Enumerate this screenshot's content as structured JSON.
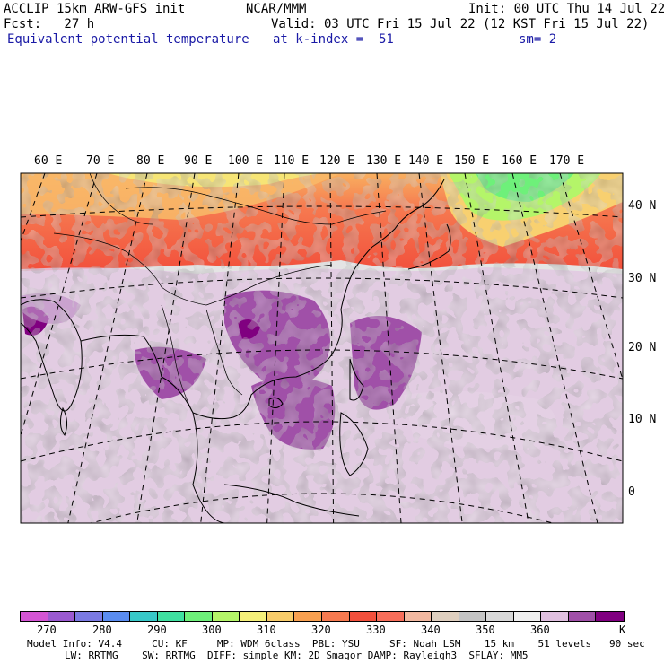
{
  "header": {
    "line1_left": "ACCLIP 15km ARW-GFS init",
    "line1_center": "NCAR/MMM",
    "line1_right": "Init: 00 UTC Thu 14 Jul 22",
    "line2_left": "Fcst:   27 h",
    "line2_right": "Valid: 03 UTC Fri 15 Jul 22 (12 KST Fri 15 Jul 22)",
    "field_name": "Equivalent potential temperature",
    "level": "at k-index =  51",
    "smoothing": "sm= 2"
  },
  "map": {
    "lon_labels": [
      "60 E",
      "70 E",
      "80 E",
      "90 E",
      "100 E",
      "110 E",
      "120 E",
      "130 E",
      "140 E",
      "150 E",
      "160 E",
      "170 E"
    ],
    "lat_labels": [
      "40 N",
      "30 N",
      "20 N",
      "10 N",
      "0"
    ]
  },
  "colorbar": {
    "unit": "K",
    "colors": [
      "#d455d4",
      "#9b5ad1",
      "#7b7ae3",
      "#5a8cf0",
      "#38c8c8",
      "#3fe0a0",
      "#6ef07a",
      "#b4f569",
      "#f5f07a",
      "#f8cc6a",
      "#f8a050",
      "#f67a50",
      "#f2503c",
      "#f76e5a",
      "#f2b8a0",
      "#dfcfbf",
      "#c4c4c4",
      "#d8d8d8",
      "#f0f0f0",
      "#e0c0e0",
      "#a050a8",
      "#800080"
    ],
    "tick_labels": [
      "270",
      "280",
      "290",
      "300",
      "310",
      "320",
      "330",
      "340",
      "350",
      "360"
    ]
  },
  "footer": {
    "line1": "Model Info: V4.4     CU: KF     MP: WDM 6class  PBL: YSU     SF: Noah LSM    15 km    51 levels   90 sec",
    "line2": "LW: RRTMG    SW: RRTMG  DIFF: simple KM: 2D Smagor DAMP: Rayleigh3  SFLAY: MM5"
  }
}
